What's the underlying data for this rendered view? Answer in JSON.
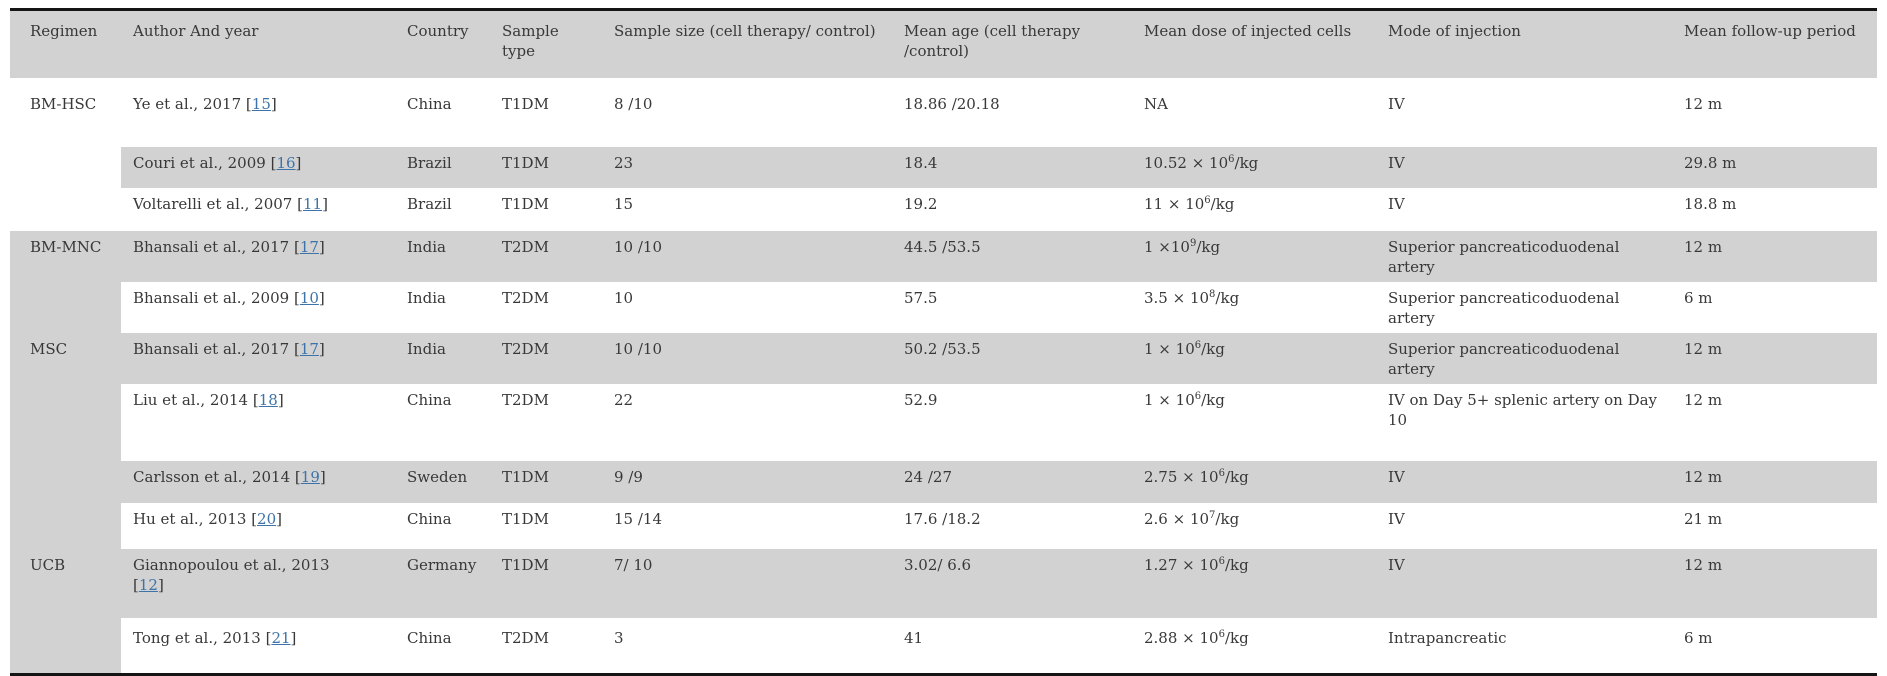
{
  "table": {
    "punct": {
      "open": "[",
      "close": "]"
    },
    "columns": [
      {
        "label": "Regimen"
      },
      {
        "label": "Author And year"
      },
      {
        "label": "Country"
      },
      {
        "label": "Sample type"
      },
      {
        "label": "Sample size (cell therapy/ control)"
      },
      {
        "label": "Mean age (cell therapy /control)"
      },
      {
        "label": "Mean dose of injected cells"
      },
      {
        "label": "Mode of injection"
      },
      {
        "label": "Mean follow-up period"
      }
    ],
    "rows": [
      {
        "regimen": "BM-HSC",
        "author": "Ye et al., 2017",
        "cite": "15",
        "country": "China",
        "sample_type": "T1DM",
        "sample_size": "8 /10",
        "mean_age": "18.86 /20.18",
        "dose": {
          "pre": "NA",
          "sup": "",
          "post": ""
        },
        "mode": "IV",
        "followup": "12 m"
      },
      {
        "regimen": "",
        "author": "Couri et al., 2009",
        "cite": "16",
        "country": "Brazil",
        "sample_type": "T1DM",
        "sample_size": "23",
        "mean_age": "18.4",
        "dose": {
          "pre": "10.52 × 10",
          "sup": "6",
          "post": "/kg"
        },
        "mode": "IV",
        "followup": "29.8 m"
      },
      {
        "regimen": "",
        "author": "Voltarelli et al., 2007",
        "cite": "11",
        "country": "Brazil",
        "sample_type": "T1DM",
        "sample_size": "15",
        "mean_age": "19.2",
        "dose": {
          "pre": "11 × 10",
          "sup": "6",
          "post": "/kg"
        },
        "mode": "IV",
        "followup": "18.8 m"
      },
      {
        "regimen": "BM-MNC",
        "author": "Bhansali et al., 2017",
        "cite": "17",
        "country": "India",
        "sample_type": "T2DM",
        "sample_size": "10 /10",
        "mean_age": "44.5 /53.5",
        "dose": {
          "pre": "1 ×10",
          "sup": "9",
          "post": "/kg"
        },
        "mode": "Superior pancreaticoduodenal artery",
        "followup": "12 m"
      },
      {
        "regimen": "",
        "author": "Bhansali et al., 2009",
        "cite": "10",
        "country": "India",
        "sample_type": "T2DM",
        "sample_size": "10",
        "mean_age": "57.5",
        "dose": {
          "pre": "3.5 ×  10",
          "sup": "8",
          "post": "/kg"
        },
        "mode": "Superior pancreaticoduodenal artery",
        "followup": "6 m"
      },
      {
        "regimen": "MSC",
        "author": "Bhansali et al., 2017",
        "cite": "17",
        "country": "India",
        "sample_type": "T2DM",
        "sample_size": "10 /10",
        "mean_age": "50.2 /53.5",
        "dose": {
          "pre": "1 × 10",
          "sup": "6",
          "post": "/kg"
        },
        "mode": "Superior pancreaticoduodenal artery",
        "followup": "12 m"
      },
      {
        "regimen": "",
        "author": "Liu et al., 2014",
        "cite": "18",
        "country": "China",
        "sample_type": "T2DM",
        "sample_size": "22",
        "mean_age": "52.9",
        "dose": {
          "pre": "1 × 10",
          "sup": "6",
          "post": "/kg"
        },
        "mode": "IV on Day 5+ splenic artery on Day 10",
        "followup": "12 m"
      },
      {
        "regimen": "",
        "author": "Carlsson et al., 2014",
        "cite": "19",
        "country": "Sweden",
        "sample_type": "T1DM",
        "sample_size": "9 /9",
        "mean_age": "24 /27",
        "dose": {
          "pre": "2.75  × 10",
          "sup": "6",
          "post": "/kg"
        },
        "mode": "IV",
        "followup": "12 m"
      },
      {
        "regimen": "",
        "author": "Hu et al., 2013",
        "cite": "20",
        "country": "China",
        "sample_type": "T1DM",
        "sample_size": "15 /14",
        "mean_age": "17.6 /18.2",
        "dose": {
          "pre": "2.6 × 10",
          "sup": "7",
          "post": "/kg"
        },
        "mode": "IV",
        "followup": "21 m"
      },
      {
        "regimen": "UCB",
        "author": "Giannopoulou et al., 2013",
        "cite": "12",
        "country": "Germany",
        "sample_type": "T1DM",
        "sample_size": "7/ 10",
        "mean_age": "3.02/ 6.6",
        "dose": {
          "pre": "1.27 × 10",
          "sup": "6",
          "post": "/kg"
        },
        "mode": "IV",
        "followup": "12 m"
      },
      {
        "regimen": "",
        "author": "Tong et al., 2013",
        "cite": "21",
        "country": "China",
        "sample_type": "T2DM",
        "sample_size": "3",
        "mean_age": "41",
        "dose": {
          "pre": "2.88 × 10",
          "sup": "6",
          "post": "/kg"
        },
        "mode": "Intrapancreatic",
        "followup": "6 m"
      }
    ]
  }
}
